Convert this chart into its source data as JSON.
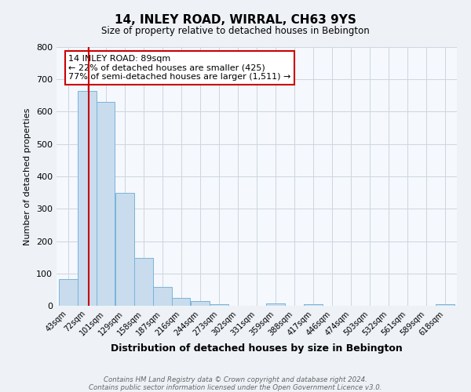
{
  "title": "14, INLEY ROAD, WIRRAL, CH63 9YS",
  "subtitle": "Size of property relative to detached houses in Bebington",
  "xlabel": "Distribution of detached houses by size in Bebington",
  "ylabel": "Number of detached properties",
  "bin_labels": [
    "43sqm",
    "72sqm",
    "101sqm",
    "129sqm",
    "158sqm",
    "187sqm",
    "216sqm",
    "244sqm",
    "273sqm",
    "302sqm",
    "331sqm",
    "359sqm",
    "388sqm",
    "417sqm",
    "446sqm",
    "474sqm",
    "503sqm",
    "532sqm",
    "561sqm",
    "589sqm",
    "618sqm"
  ],
  "bar_values": [
    82,
    665,
    630,
    348,
    148,
    57,
    25,
    15,
    5,
    0,
    0,
    8,
    0,
    5,
    0,
    0,
    0,
    0,
    0,
    0,
    5
  ],
  "bar_left_edges": [
    43,
    72,
    101,
    129,
    158,
    187,
    216,
    244,
    273,
    302,
    331,
    359,
    388,
    417,
    446,
    474,
    503,
    532,
    561,
    589,
    618
  ],
  "bar_widths": [
    29,
    29,
    28,
    29,
    29,
    29,
    28,
    29,
    29,
    29,
    28,
    29,
    29,
    29,
    28,
    29,
    29,
    29,
    28,
    29,
    29
  ],
  "bar_color": "#c8dcee",
  "bar_edge_color": "#7ab4d8",
  "ylim": [
    0,
    800
  ],
  "yticks": [
    0,
    100,
    200,
    300,
    400,
    500,
    600,
    700,
    800
  ],
  "vline_x": 89,
  "vline_color": "#cc0000",
  "annotation_title": "14 INLEY ROAD: 89sqm",
  "annotation_line1": "← 22% of detached houses are smaller (425)",
  "annotation_line2": "77% of semi-detached houses are larger (1,511) →",
  "annotation_box_color": "#cc0000",
  "footer_line1": "Contains HM Land Registry data © Crown copyright and database right 2024.",
  "footer_line2": "Contains public sector information licensed under the Open Government Licence v3.0.",
  "background_color": "#eef2f7",
  "plot_bg_color": "#f5f8fc",
  "grid_color": "#cdd5e0"
}
